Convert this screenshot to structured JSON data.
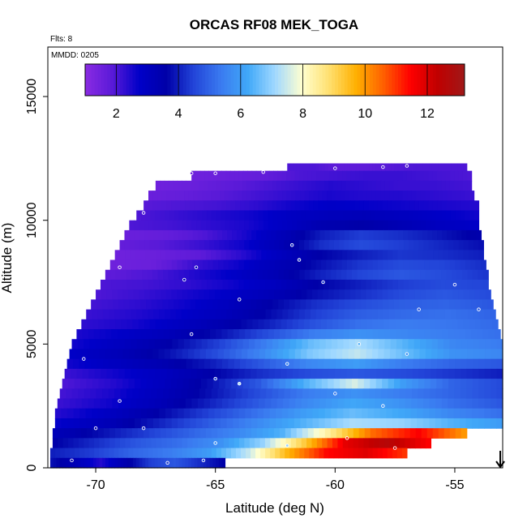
{
  "chart_data": {
    "type": "heatmap",
    "title": "ORCAS RF08 MEK_TOGA",
    "xlabel": "Latitude (deg N)",
    "ylabel": "Altitude (m)",
    "xlim": [
      -72,
      -53
    ],
    "ylim": [
      0,
      17000
    ],
    "xticks": [
      -70,
      -65,
      -60,
      -55
    ],
    "yticks": [
      0,
      5000,
      10000,
      15000
    ],
    "xtick_labels": [
      "-70",
      "-65",
      "-60",
      "-55"
    ],
    "ytick_labels": [
      "0",
      "5000",
      "10000",
      "15000"
    ],
    "flts_note": "Flts: 8",
    "mmdd_note": "MMDD: 0205",
    "colorbar": {
      "min": 1,
      "max": 13.2,
      "ticks": [
        2,
        4,
        6,
        8,
        10,
        12
      ],
      "tick_labels": [
        "2",
        "4",
        "6",
        "8",
        "10",
        "12"
      ],
      "colors": [
        "#8a2be2",
        "#5a1ad8",
        "#0000c8",
        "#0000a8",
        "#2244d8",
        "#3a7af0",
        "#40a8f8",
        "#a0d8ff",
        "#ffffd0",
        "#ffe070",
        "#ffb000",
        "#ff6000",
        "#ff0000",
        "#c00000",
        "#a01818"
      ]
    },
    "rows": [
      {
        "alt": 12100,
        "x0": -62.0,
        "x1": -54.5,
        "values": [
          2.0,
          2.0,
          1.8,
          1.8,
          1.9,
          2.0,
          2.0,
          2.0
        ]
      },
      {
        "alt": 11800,
        "x0": -66.0,
        "x1": -54.3,
        "values": [
          1.5,
          1.6,
          1.7,
          2.0,
          2.1,
          2.2,
          2.2,
          2.1,
          2.0
        ]
      },
      {
        "alt": 11400,
        "x0": -67.5,
        "x1": -54.3,
        "values": [
          1.5,
          1.6,
          1.8,
          2.0,
          2.2,
          2.4,
          2.3,
          2.2,
          2.2,
          2.1
        ]
      },
      {
        "alt": 11000,
        "x0": -67.8,
        "x1": -54.2,
        "values": [
          1.6,
          1.7,
          1.9,
          2.1,
          2.3,
          2.5,
          2.4,
          2.4,
          2.3,
          2.2
        ]
      },
      {
        "alt": 10600,
        "x0": -68.0,
        "x1": -54.0,
        "values": [
          1.9,
          2.0,
          2.1,
          2.3,
          2.6,
          2.8,
          2.7,
          2.6,
          2.5,
          2.4
        ]
      },
      {
        "alt": 10200,
        "x0": -68.3,
        "x1": -54.0,
        "values": [
          2.0,
          2.2,
          2.4,
          2.6,
          2.9,
          3.1,
          3.2,
          3.0,
          2.8,
          2.6
        ]
      },
      {
        "alt": 9800,
        "x0": -68.6,
        "x1": -54.0,
        "values": [
          2.0,
          2.1,
          2.3,
          2.5,
          2.9,
          3.4,
          3.6,
          3.3,
          3.0,
          2.8
        ]
      },
      {
        "alt": 9400,
        "x0": -68.8,
        "x1": -53.9,
        "values": [
          1.6,
          1.7,
          2.0,
          2.5,
          3.2,
          4.0,
          4.4,
          4.2,
          3.9,
          3.5
        ]
      },
      {
        "alt": 9000,
        "x0": -69.0,
        "x1": -53.8,
        "values": [
          1.7,
          1.9,
          2.2,
          2.6,
          3.3,
          4.2,
          4.6,
          4.4,
          4.1,
          3.8
        ]
      },
      {
        "alt": 8600,
        "x0": -69.2,
        "x1": -53.8,
        "values": [
          1.5,
          1.6,
          1.8,
          2.3,
          3.0,
          3.6,
          4.0,
          4.3,
          4.2,
          4.0
        ]
      },
      {
        "alt": 8200,
        "x0": -69.4,
        "x1": -53.7,
        "values": [
          1.5,
          1.6,
          2.2,
          2.6,
          3.2,
          3.8,
          4.3,
          4.6,
          4.5,
          4.2
        ]
      },
      {
        "alt": 7800,
        "x0": -69.6,
        "x1": -53.6,
        "values": [
          1.8,
          2.0,
          2.4,
          2.8,
          3.3,
          4.0,
          4.5,
          4.8,
          4.6,
          4.3
        ]
      },
      {
        "alt": 7400,
        "x0": -69.8,
        "x1": -53.6,
        "values": [
          2.0,
          2.1,
          2.3,
          2.6,
          3.0,
          3.6,
          4.0,
          4.4,
          4.6,
          4.5
        ]
      },
      {
        "alt": 7000,
        "x0": -70.0,
        "x1": -53.5,
        "values": [
          2.0,
          2.2,
          2.5,
          2.8,
          3.2,
          3.8,
          4.2,
          4.6,
          4.8,
          4.6
        ]
      },
      {
        "alt": 6600,
        "x0": -70.2,
        "x1": -53.4,
        "values": [
          2.1,
          2.3,
          2.6,
          3.0,
          3.6,
          4.2,
          4.6,
          4.9,
          5.0,
          4.8
        ]
      },
      {
        "alt": 6200,
        "x0": -70.4,
        "x1": -53.3,
        "values": [
          2.2,
          2.4,
          2.7,
          3.1,
          3.7,
          4.4,
          4.9,
          5.1,
          5.2,
          5.0
        ]
      },
      {
        "alt": 5800,
        "x0": -70.6,
        "x1": -53.2,
        "values": [
          2.3,
          2.5,
          2.9,
          3.4,
          4.0,
          4.7,
          5.2,
          5.4,
          5.3,
          5.1
        ]
      },
      {
        "alt": 5400,
        "x0": -70.8,
        "x1": -53.1,
        "values": [
          2.5,
          2.8,
          3.2,
          3.8,
          4.6,
          5.4,
          5.8,
          5.6,
          5.4,
          5.2
        ]
      },
      {
        "alt": 5000,
        "x0": -71.0,
        "x1": -53.0,
        "values": [
          2.6,
          3.0,
          3.6,
          4.4,
          5.4,
          6.6,
          7.2,
          6.4,
          5.6,
          5.4
        ]
      },
      {
        "alt": 4600,
        "x0": -71.1,
        "x1": -53.0,
        "values": [
          2.8,
          3.2,
          3.8,
          4.6,
          5.6,
          6.8,
          7.4,
          6.6,
          5.8,
          5.6
        ]
      },
      {
        "alt": 4200,
        "x0": -71.2,
        "x1": -53.0,
        "values": [
          2.6,
          3.0,
          3.4,
          4.0,
          4.8,
          5.6,
          6.0,
          5.4,
          5.0,
          4.8
        ]
      },
      {
        "alt": 3800,
        "x0": -71.3,
        "x1": -53.0,
        "values": [
          2.2,
          2.6,
          3.0,
          3.6,
          4.2,
          4.6,
          4.8,
          4.6,
          4.3,
          4.0
        ]
      },
      {
        "alt": 3400,
        "x0": -71.4,
        "x1": -53.0,
        "values": [
          2.0,
          2.4,
          3.0,
          3.8,
          4.8,
          6.4,
          7.6,
          6.0,
          5.0,
          4.6
        ]
      },
      {
        "alt": 3000,
        "x0": -71.5,
        "x1": -53.0,
        "values": [
          2.1,
          2.5,
          3.1,
          3.8,
          4.6,
          5.4,
          5.8,
          5.4,
          5.0,
          4.6
        ]
      },
      {
        "alt": 2600,
        "x0": -71.6,
        "x1": -53.0,
        "values": [
          2.2,
          2.6,
          3.2,
          4.0,
          4.8,
          5.6,
          6.2,
          5.8,
          5.2,
          4.8
        ]
      },
      {
        "alt": 2200,
        "x0": -71.7,
        "x1": -53.0,
        "values": [
          2.4,
          2.9,
          3.6,
          4.4,
          5.2,
          6.0,
          6.6,
          6.2,
          5.6,
          5.2
        ]
      },
      {
        "alt": 1800,
        "x0": -71.7,
        "x1": -53.0,
        "values": [
          2.7,
          3.2,
          4.0,
          4.8,
          5.6,
          6.4,
          7.2,
          7.0,
          6.4,
          6.0
        ]
      },
      {
        "alt": 1400,
        "x0": -71.8,
        "x1": -54.5,
        "values": [
          3.2,
          3.8,
          4.4,
          5.0,
          5.6,
          6.4,
          8.4,
          10.5,
          11.5,
          10.0
        ]
      },
      {
        "alt": 1000,
        "x0": -71.8,
        "x1": -56.0,
        "values": [
          3.6,
          4.2,
          4.8,
          5.2,
          5.8,
          7.0,
          9.2,
          11.8,
          12.6,
          11.5
        ]
      },
      {
        "alt": 600,
        "x0": -71.9,
        "x1": -57.0,
        "values": [
          4.0,
          4.4,
          5.0,
          5.4,
          6.0,
          7.4,
          9.6,
          11.4,
          11.9,
          11.0
        ]
      },
      {
        "alt": 200,
        "x0": -71.9,
        "x1": -64.6,
        "values": [
          3.8,
          3.2,
          2.4,
          3.4,
          4.4,
          4.8,
          4.2,
          3.6
        ]
      }
    ],
    "observations": [
      {
        "lat": -66.0,
        "alt": 11900,
        "value": 1.5
      },
      {
        "lat": -65.0,
        "alt": 11900,
        "value": 1.6
      },
      {
        "lat": -63.0,
        "alt": 11950,
        "value": 1.8
      },
      {
        "lat": -60.0,
        "alt": 12100,
        "value": 2.0
      },
      {
        "lat": -58.0,
        "alt": 12150,
        "value": 2.0
      },
      {
        "lat": -57.0,
        "alt": 12200,
        "value": 2.0
      },
      {
        "lat": -68.0,
        "alt": 10300,
        "value": 2.0
      },
      {
        "lat": -61.8,
        "alt": 9000,
        "value": 4.2
      },
      {
        "lat": -61.5,
        "alt": 8400,
        "value": 4.3
      },
      {
        "lat": -69.0,
        "alt": 8100,
        "value": 1.6
      },
      {
        "lat": -65.8,
        "alt": 8100,
        "value": 3.0
      },
      {
        "lat": -66.3,
        "alt": 7600,
        "value": 3.2
      },
      {
        "lat": -60.5,
        "alt": 7500,
        "value": 4.4
      },
      {
        "lat": -55.0,
        "alt": 7400,
        "value": 4.5
      },
      {
        "lat": -64.0,
        "alt": 6800,
        "value": 3.6
      },
      {
        "lat": -56.5,
        "alt": 6400,
        "value": 4.8
      },
      {
        "lat": -54.0,
        "alt": 6400,
        "value": 4.9
      },
      {
        "lat": -66.0,
        "alt": 5400,
        "value": 3.8
      },
      {
        "lat": -59.0,
        "alt": 5000,
        "value": 6.4
      },
      {
        "lat": -57.0,
        "alt": 4600,
        "value": 5.8
      },
      {
        "lat": -70.5,
        "alt": 4400,
        "value": 2.8
      },
      {
        "lat": -62.0,
        "alt": 4200,
        "value": 5.6
      },
      {
        "lat": -65.0,
        "alt": 3600,
        "value": 4.6
      },
      {
        "lat": -64.0,
        "alt": 3400,
        "value": 7.2
      },
      {
        "lat": -60.0,
        "alt": 3000,
        "value": 5.4
      },
      {
        "lat": -69.0,
        "alt": 2700,
        "value": 2.5
      },
      {
        "lat": -58.0,
        "alt": 2500,
        "value": 5.8
      },
      {
        "lat": -70.0,
        "alt": 1600,
        "value": 3.2
      },
      {
        "lat": -68.0,
        "alt": 1600,
        "value": 4.0
      },
      {
        "lat": -65.0,
        "alt": 1000,
        "value": 5.8
      },
      {
        "lat": -62.0,
        "alt": 900,
        "value": 7.0
      },
      {
        "lat": -59.5,
        "alt": 1200,
        "value": 11.0
      },
      {
        "lat": -57.5,
        "alt": 800,
        "value": 12.2
      },
      {
        "lat": -71.0,
        "alt": 300,
        "value": 3.6
      },
      {
        "lat": -67.0,
        "alt": 200,
        "value": 4.4
      },
      {
        "lat": -65.5,
        "alt": 300,
        "value": 4.6
      }
    ],
    "marker": {
      "lat": -53.1,
      "alt": 0,
      "symbol": "down-arrow"
    }
  }
}
